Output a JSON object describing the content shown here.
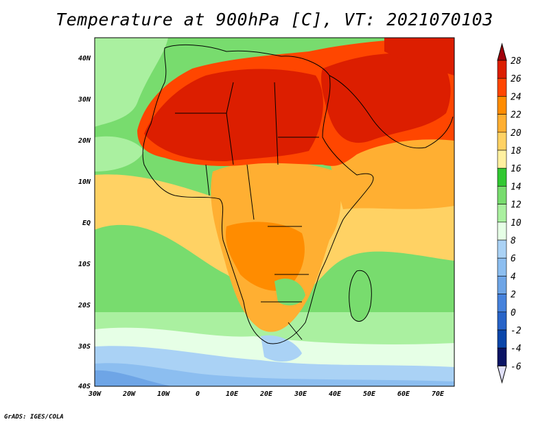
{
  "title": "Temperature at 900hPa [C], VT: 2021070103",
  "footer": "GrADS: IGES/COLA",
  "axes": {
    "lon_labels": [
      "30W",
      "20W",
      "10W",
      "0",
      "10E",
      "20E",
      "30E",
      "40E",
      "50E",
      "60E",
      "70E"
    ],
    "lat_labels": [
      "40N",
      "30N",
      "20N",
      "10N",
      "EQ",
      "10S",
      "20S",
      "30S",
      "40S"
    ]
  },
  "colorbar": {
    "levels": [
      "28",
      "26",
      "24",
      "22",
      "20",
      "18",
      "16",
      "14",
      "12",
      "10",
      "8",
      "6",
      "4",
      "2",
      "0",
      "-2",
      "-4",
      "-6"
    ],
    "colors": [
      "#a0000a",
      "#dc1e00",
      "#ff4600",
      "#ff8c00",
      "#ffaf32",
      "#ffd264",
      "#fff0a0",
      "#32c832",
      "#78dc6e",
      "#aaf0a0",
      "#e6ffe6",
      "#aad2f5",
      "#8cbef0",
      "#6ea5e6",
      "#4682dc",
      "#2864c8",
      "#0a46aa",
      "#0a1464",
      "#e0e0f8"
    ]
  },
  "regions": [
    {
      "name": "sahara-hot",
      "color": "#dc1e00"
    },
    {
      "name": "arabia-hot",
      "color": "#dc1e00"
    },
    {
      "name": "southern-ocean-cold",
      "color": "#8cbef0"
    }
  ]
}
